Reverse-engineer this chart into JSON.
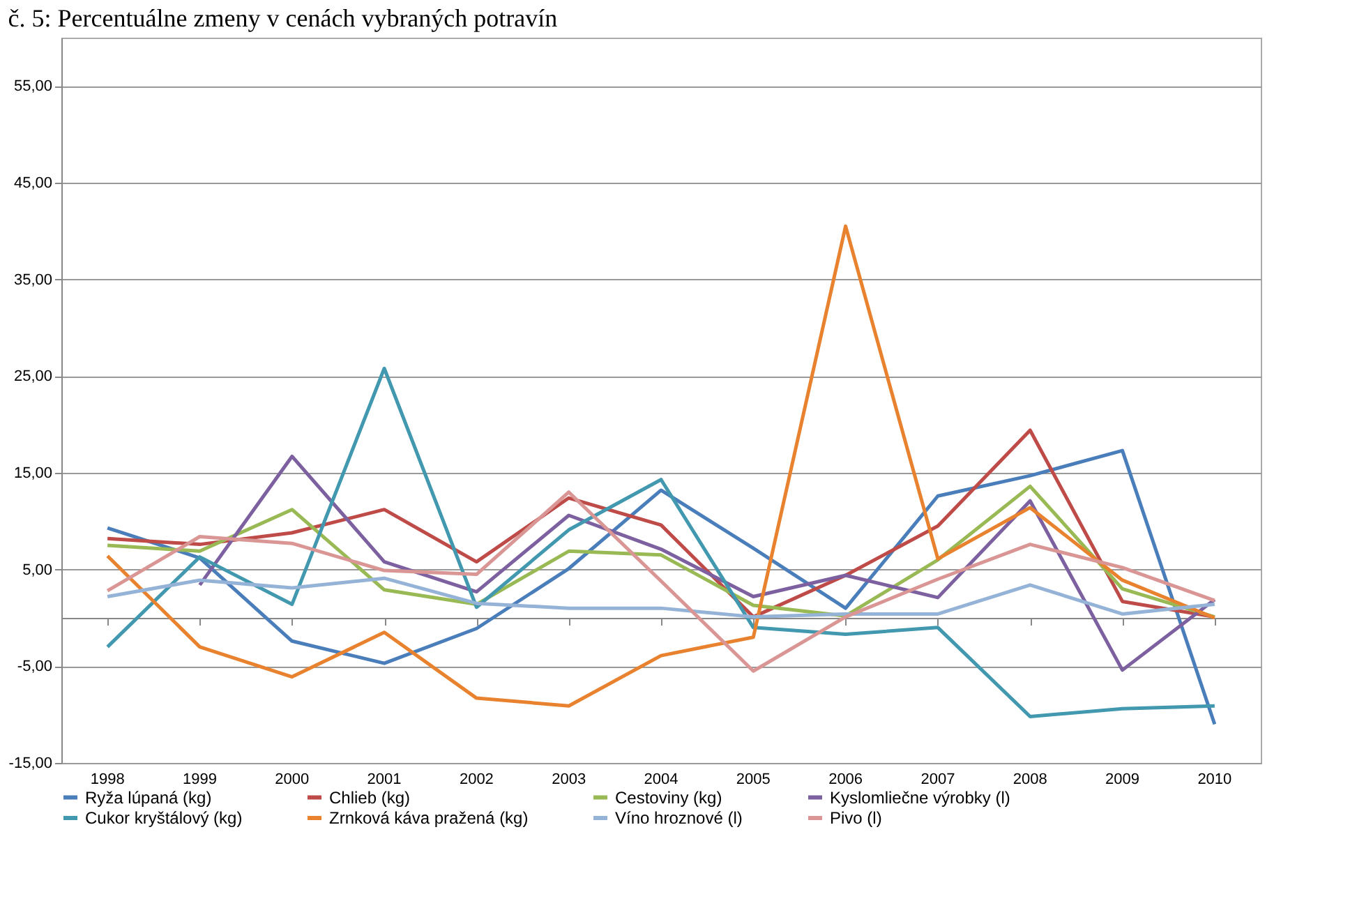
{
  "chart_data": {
    "type": "line",
    "title": "č. 5: Percentuálne zmeny v cenách vybraných potravín",
    "categories": [
      "1998",
      "1999",
      "2000",
      "2001",
      "2002",
      "2003",
      "2004",
      "2005",
      "2006",
      "2007",
      "2008",
      "2009",
      "2010"
    ],
    "series": [
      {
        "name": "Ryža lúpaná (kg)",
        "color": "#4a7ebb",
        "values": [
          9.3,
          6.2,
          -2.4,
          -4.7,
          -1.1,
          5.1,
          13.2,
          7.2,
          1.0,
          12.6,
          14.7,
          17.3,
          -11.0
        ]
      },
      {
        "name": "Chlieb (kg)",
        "color": "#be4b48",
        "values": [
          8.2,
          7.6,
          8.8,
          11.2,
          5.8,
          12.4,
          9.6,
          0.1,
          4.4,
          9.5,
          19.4,
          1.7,
          0.1
        ]
      },
      {
        "name": "Cestoviny (kg)",
        "color": "#98b954",
        "values": [
          7.5,
          6.9,
          11.2,
          2.9,
          1.4,
          6.9,
          6.5,
          1.3,
          0.2,
          6.0,
          13.6,
          3.0,
          0.1
        ]
      },
      {
        "name": "Kyslomliečne výrobky (l)",
        "color": "#7d60a0",
        "values": [
          null,
          3.4,
          16.7,
          5.8,
          2.7,
          10.6,
          7.1,
          2.2,
          4.4,
          2.1,
          12.1,
          -5.4,
          1.9
        ]
      },
      {
        "name": "Cukor kryštálový (kg)",
        "color": "#4198af",
        "values": [
          -3.0,
          6.3,
          1.4,
          25.8,
          1.1,
          9.1,
          14.3,
          -1.0,
          -1.7,
          -1.0,
          -10.2,
          -9.4,
          -9.1
        ]
      },
      {
        "name": "Zrnková káva pražená (kg)",
        "color": "#e8822e",
        "values": [
          6.4,
          -3.0,
          -6.1,
          -1.5,
          -8.3,
          -9.1,
          -3.9,
          -2.0,
          40.5,
          6.1,
          11.4,
          3.9,
          0.0
        ]
      },
      {
        "name": "Víno hroznové (l)",
        "color": "#95b3d7",
        "values": [
          2.2,
          3.9,
          3.1,
          4.1,
          1.5,
          1.0,
          1.0,
          0.1,
          0.4,
          0.4,
          3.4,
          0.4,
          1.4
        ]
      },
      {
        "name": "Pivo (l)",
        "color": "#d99694",
        "values": [
          2.8,
          8.4,
          7.7,
          4.9,
          4.5,
          13.0,
          3.8,
          -5.5,
          0.1,
          4.0,
          7.6,
          5.2,
          1.8
        ]
      }
    ],
    "ylim": [
      -15,
      60
    ],
    "yticks": [
      {
        "value": -15,
        "label": "-15,00"
      },
      {
        "value": -5,
        "label": "-5,00"
      },
      {
        "value": 5,
        "label": "5,00"
      },
      {
        "value": 15,
        "label": "15,00"
      },
      {
        "value": 25,
        "label": "25,00"
      },
      {
        "value": 35,
        "label": "35,00"
      },
      {
        "value": 45,
        "label": "45,00"
      },
      {
        "value": 55,
        "label": "55,00"
      }
    ],
    "grid": "y",
    "legend": "bottom"
  }
}
